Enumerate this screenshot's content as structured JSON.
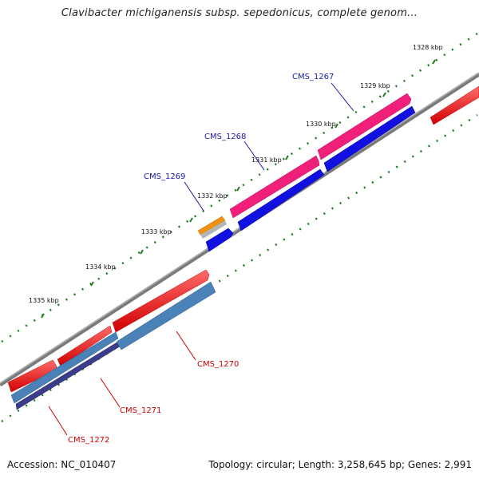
{
  "title": "Clavibacter michiganensis subsp. sepedonicus, complete genom...",
  "footer": {
    "accession_label": "Accession:",
    "accession": "NC_010407",
    "topology_label": "Topology:",
    "topology": "circular",
    "length_label": "Length:",
    "length": "3,258,645 bp",
    "genes_label": "Genes:",
    "genes": "2,991"
  },
  "colors": {
    "backbone": "#8c8c8c",
    "tick": "#1f7a1f",
    "forward_label": "#1a1aa6",
    "reverse_label": "#d00000",
    "red_gene": "#f01010",
    "magenta_gene": "#f0207a",
    "blue_gene": "#1010e0",
    "steel_gene": "#4a82b8",
    "purple_gene": "#3c3c8c",
    "orange_gene": "#f09010",
    "grey_gene": "#b4b4b4"
  },
  "kbp_ticks": [
    "1328 kbp",
    "1329 kbp",
    "1330 kbp",
    "1331 kbp",
    "1332 kbp",
    "1333 kbp",
    "1334 kbp",
    "1335 kbp"
  ],
  "gene_labels": [
    {
      "name": "CMS_1267",
      "strand": "forward"
    },
    {
      "name": "CMS_1268",
      "strand": "forward"
    },
    {
      "name": "CMS_1269",
      "strand": "forward"
    },
    {
      "name": "CMS_1270",
      "strand": "reverse"
    },
    {
      "name": "CMS_1271",
      "strand": "reverse"
    },
    {
      "name": "CMS_1272",
      "strand": "reverse"
    }
  ]
}
